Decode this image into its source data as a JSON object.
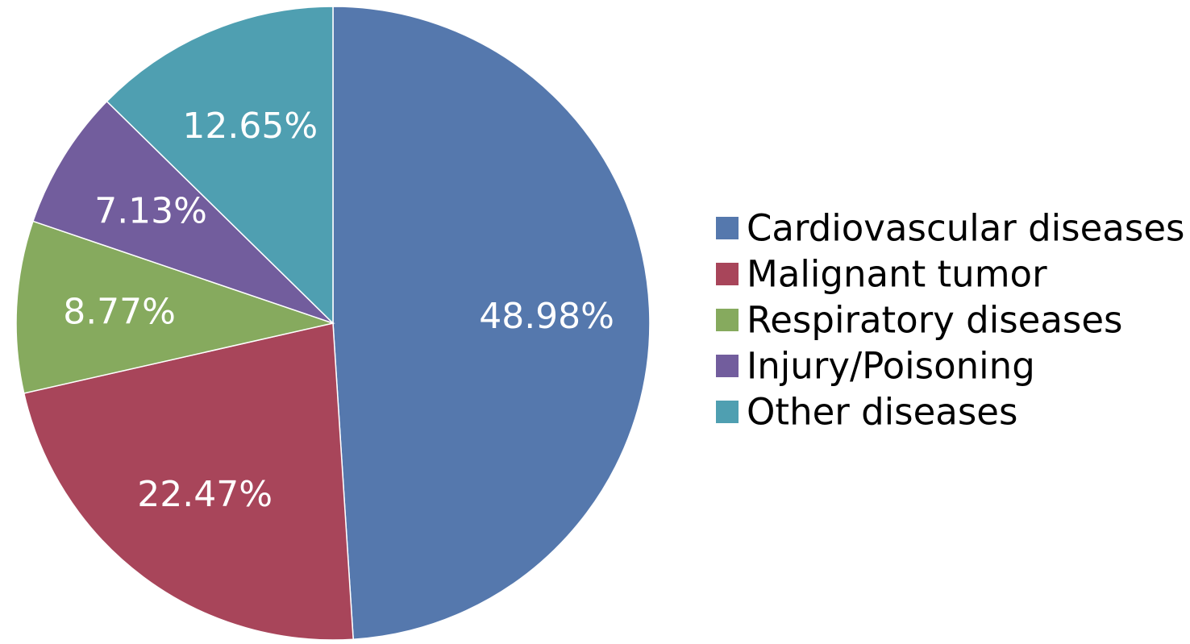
{
  "chart_data": {
    "type": "pie",
    "categories": [
      "Cardiovascular diseases",
      "Malignant tumor",
      "Respiratory diseases",
      "Injury/Poisoning",
      "Other diseases"
    ],
    "values": [
      48.98,
      22.47,
      8.77,
      7.13,
      12.65
    ],
    "data_labels": [
      "48.98%",
      "22.47%",
      "8.77%",
      "7.13%",
      "12.65%"
    ],
    "colors": [
      "#5578AD",
      "#A8455A",
      "#86AA5E",
      "#725D9D",
      "#4F9FB1"
    ],
    "start": "12 o'clock",
    "direction": "clockwise",
    "legend_position": "right",
    "title": ""
  }
}
